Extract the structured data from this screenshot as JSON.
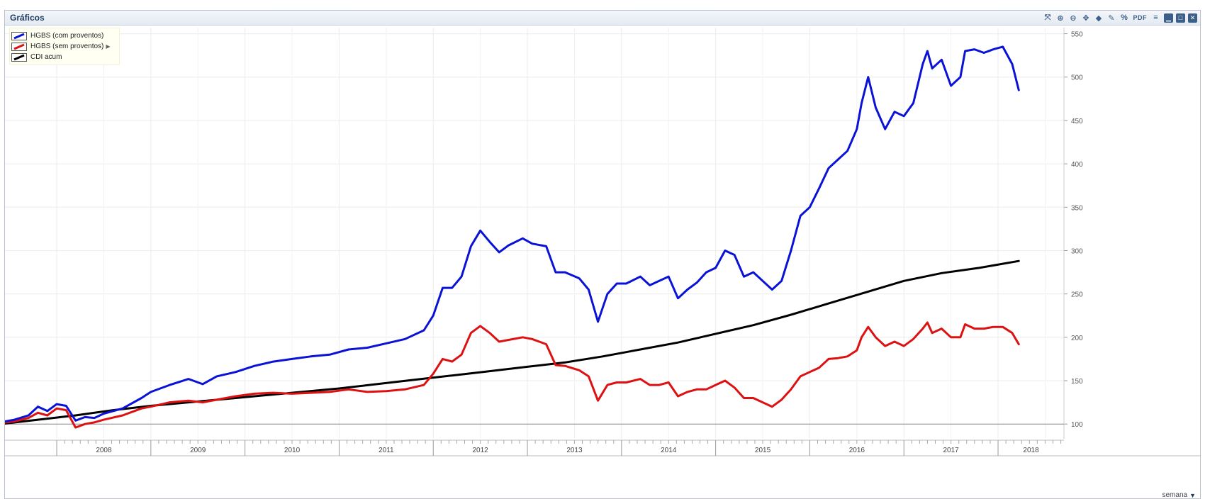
{
  "panel": {
    "title": "Gráficos"
  },
  "toolbar": [
    {
      "name": "fullscreen-icon",
      "glyph": "⤧"
    },
    {
      "name": "zoom-in-icon",
      "glyph": "⊕"
    },
    {
      "name": "zoom-out-icon",
      "glyph": "⊖"
    },
    {
      "name": "pan-icon",
      "glyph": "✥"
    },
    {
      "name": "tag-icon",
      "glyph": "◆"
    },
    {
      "name": "draw-icon",
      "glyph": "✎"
    },
    {
      "name": "percent-icon",
      "glyph": "%"
    },
    {
      "name": "pdf-icon",
      "glyph": "PDF"
    },
    {
      "name": "menu-icon",
      "glyph": "≡"
    },
    {
      "name": "minimize-icon",
      "glyph": "▁"
    },
    {
      "name": "maximize-icon",
      "glyph": "□"
    },
    {
      "name": "close-icon",
      "glyph": "✕"
    }
  ],
  "legend": [
    {
      "label": "HGBS (com proventos)",
      "color": "#0a12d6",
      "arrow": ""
    },
    {
      "label": "HGBS (sem proventos)",
      "color": "#dd1111",
      "arrow": "▶"
    },
    {
      "label": "CDI acum",
      "color": "#000000",
      "arrow": ""
    }
  ],
  "period": {
    "label": "semana",
    "caret": "▼"
  },
  "chart_data": {
    "type": "line",
    "title": "",
    "xlabel": "",
    "ylabel": "",
    "xlim": [
      2007.45,
      2018.7
    ],
    "ylim": [
      83,
      557
    ],
    "yticks": [
      100,
      150,
      200,
      250,
      300,
      350,
      400,
      450,
      500,
      550
    ],
    "year_labels": [
      "2008",
      "2009",
      "2010",
      "2011",
      "2012",
      "2013",
      "2014",
      "2015",
      "2016",
      "2017",
      "2018"
    ],
    "baseline": 100,
    "grid": true,
    "legend_position": "top-left",
    "series": [
      {
        "name": "HGBS (com proventos)",
        "color": "#0a12d6",
        "points": [
          [
            2007.4,
            102
          ],
          [
            2007.55,
            105
          ],
          [
            2007.7,
            110
          ],
          [
            2007.8,
            120
          ],
          [
            2007.9,
            115
          ],
          [
            2008.0,
            123
          ],
          [
            2008.1,
            121
          ],
          [
            2008.2,
            104
          ],
          [
            2008.3,
            108
          ],
          [
            2008.4,
            107
          ],
          [
            2008.5,
            112
          ],
          [
            2008.7,
            118
          ],
          [
            2008.9,
            130
          ],
          [
            2009.0,
            137
          ],
          [
            2009.2,
            145
          ],
          [
            2009.4,
            152
          ],
          [
            2009.55,
            146
          ],
          [
            2009.7,
            155
          ],
          [
            2009.9,
            160
          ],
          [
            2010.1,
            167
          ],
          [
            2010.3,
            172
          ],
          [
            2010.5,
            175
          ],
          [
            2010.7,
            178
          ],
          [
            2010.9,
            180
          ],
          [
            2011.1,
            186
          ],
          [
            2011.3,
            188
          ],
          [
            2011.5,
            193
          ],
          [
            2011.7,
            198
          ],
          [
            2011.9,
            208
          ],
          [
            2012.0,
            225
          ],
          [
            2012.1,
            257
          ],
          [
            2012.2,
            257
          ],
          [
            2012.3,
            270
          ],
          [
            2012.4,
            305
          ],
          [
            2012.5,
            323
          ],
          [
            2012.6,
            310
          ],
          [
            2012.7,
            298
          ],
          [
            2012.8,
            306
          ],
          [
            2012.95,
            314
          ],
          [
            2013.05,
            308
          ],
          [
            2013.2,
            305
          ],
          [
            2013.3,
            275
          ],
          [
            2013.4,
            275
          ],
          [
            2013.55,
            268
          ],
          [
            2013.65,
            255
          ],
          [
            2013.75,
            218
          ],
          [
            2013.85,
            250
          ],
          [
            2013.95,
            262
          ],
          [
            2014.05,
            262
          ],
          [
            2014.2,
            270
          ],
          [
            2014.3,
            260
          ],
          [
            2014.4,
            265
          ],
          [
            2014.5,
            270
          ],
          [
            2014.6,
            245
          ],
          [
            2014.7,
            255
          ],
          [
            2014.8,
            263
          ],
          [
            2014.9,
            275
          ],
          [
            2015.0,
            280
          ],
          [
            2015.1,
            300
          ],
          [
            2015.2,
            295
          ],
          [
            2015.3,
            270
          ],
          [
            2015.4,
            275
          ],
          [
            2015.5,
            265
          ],
          [
            2015.6,
            255
          ],
          [
            2015.7,
            265
          ],
          [
            2015.8,
            300
          ],
          [
            2015.9,
            340
          ],
          [
            2016.0,
            350
          ],
          [
            2016.1,
            372
          ],
          [
            2016.2,
            395
          ],
          [
            2016.3,
            405
          ],
          [
            2016.4,
            415
          ],
          [
            2016.5,
            440
          ],
          [
            2016.55,
            470
          ],
          [
            2016.62,
            500
          ],
          [
            2016.7,
            465
          ],
          [
            2016.8,
            440
          ],
          [
            2016.9,
            460
          ],
          [
            2017.0,
            455
          ],
          [
            2017.1,
            470
          ],
          [
            2017.2,
            515
          ],
          [
            2017.25,
            530
          ],
          [
            2017.3,
            510
          ],
          [
            2017.4,
            520
          ],
          [
            2017.5,
            490
          ],
          [
            2017.6,
            500
          ],
          [
            2017.65,
            530
          ],
          [
            2017.75,
            532
          ],
          [
            2017.85,
            528
          ],
          [
            2017.95,
            532
          ],
          [
            2018.05,
            535
          ],
          [
            2018.15,
            515
          ],
          [
            2018.22,
            485
          ]
        ]
      },
      {
        "name": "HGBS (sem proventos)",
        "color": "#dd1111",
        "points": [
          [
            2007.4,
            101
          ],
          [
            2007.55,
            103
          ],
          [
            2007.7,
            107
          ],
          [
            2007.8,
            113
          ],
          [
            2007.9,
            110
          ],
          [
            2008.0,
            118
          ],
          [
            2008.1,
            116
          ],
          [
            2008.2,
            96
          ],
          [
            2008.3,
            100
          ],
          [
            2008.4,
            102
          ],
          [
            2008.5,
            105
          ],
          [
            2008.7,
            110
          ],
          [
            2008.9,
            118
          ],
          [
            2009.0,
            120
          ],
          [
            2009.2,
            125
          ],
          [
            2009.4,
            127
          ],
          [
            2009.55,
            125
          ],
          [
            2009.7,
            128
          ],
          [
            2009.9,
            132
          ],
          [
            2010.1,
            135
          ],
          [
            2010.3,
            136
          ],
          [
            2010.5,
            135
          ],
          [
            2010.7,
            136
          ],
          [
            2010.9,
            137
          ],
          [
            2011.1,
            140
          ],
          [
            2011.3,
            137
          ],
          [
            2011.5,
            138
          ],
          [
            2011.7,
            140
          ],
          [
            2011.9,
            145
          ],
          [
            2012.0,
            158
          ],
          [
            2012.1,
            175
          ],
          [
            2012.2,
            172
          ],
          [
            2012.3,
            180
          ],
          [
            2012.4,
            205
          ],
          [
            2012.5,
            213
          ],
          [
            2012.6,
            205
          ],
          [
            2012.7,
            195
          ],
          [
            2012.8,
            197
          ],
          [
            2012.95,
            200
          ],
          [
            2013.05,
            198
          ],
          [
            2013.2,
            192
          ],
          [
            2013.3,
            168
          ],
          [
            2013.4,
            167
          ],
          [
            2013.55,
            162
          ],
          [
            2013.65,
            155
          ],
          [
            2013.75,
            127
          ],
          [
            2013.85,
            145
          ],
          [
            2013.95,
            148
          ],
          [
            2014.05,
            148
          ],
          [
            2014.2,
            152
          ],
          [
            2014.3,
            145
          ],
          [
            2014.4,
            145
          ],
          [
            2014.5,
            148
          ],
          [
            2014.6,
            132
          ],
          [
            2014.7,
            137
          ],
          [
            2014.8,
            140
          ],
          [
            2014.9,
            140
          ],
          [
            2015.0,
            145
          ],
          [
            2015.1,
            150
          ],
          [
            2015.2,
            142
          ],
          [
            2015.3,
            130
          ],
          [
            2015.4,
            130
          ],
          [
            2015.5,
            125
          ],
          [
            2015.6,
            120
          ],
          [
            2015.7,
            128
          ],
          [
            2015.8,
            140
          ],
          [
            2015.9,
            155
          ],
          [
            2016.0,
            160
          ],
          [
            2016.1,
            165
          ],
          [
            2016.2,
            175
          ],
          [
            2016.3,
            176
          ],
          [
            2016.4,
            178
          ],
          [
            2016.5,
            185
          ],
          [
            2016.55,
            200
          ],
          [
            2016.62,
            212
          ],
          [
            2016.7,
            200
          ],
          [
            2016.8,
            190
          ],
          [
            2016.9,
            195
          ],
          [
            2017.0,
            190
          ],
          [
            2017.1,
            198
          ],
          [
            2017.2,
            210
          ],
          [
            2017.25,
            217
          ],
          [
            2017.3,
            205
          ],
          [
            2017.4,
            210
          ],
          [
            2017.5,
            200
          ],
          [
            2017.6,
            200
          ],
          [
            2017.65,
            215
          ],
          [
            2017.75,
            210
          ],
          [
            2017.85,
            210
          ],
          [
            2017.95,
            212
          ],
          [
            2018.05,
            212
          ],
          [
            2018.15,
            205
          ],
          [
            2018.22,
            192
          ]
        ]
      },
      {
        "name": "CDI acum",
        "color": "#000000",
        "points": [
          [
            2007.4,
            100
          ],
          [
            2007.8,
            105
          ],
          [
            2008.2,
            110
          ],
          [
            2008.6,
            116
          ],
          [
            2009.0,
            121
          ],
          [
            2009.4,
            125
          ],
          [
            2009.8,
            129
          ],
          [
            2010.2,
            133
          ],
          [
            2010.6,
            137
          ],
          [
            2011.0,
            141
          ],
          [
            2011.4,
            146
          ],
          [
            2011.8,
            151
          ],
          [
            2012.2,
            156
          ],
          [
            2012.6,
            161
          ],
          [
            2013.0,
            166
          ],
          [
            2013.4,
            171
          ],
          [
            2013.8,
            178
          ],
          [
            2014.2,
            186
          ],
          [
            2014.6,
            194
          ],
          [
            2015.0,
            204
          ],
          [
            2015.4,
            214
          ],
          [
            2015.8,
            226
          ],
          [
            2016.2,
            239
          ],
          [
            2016.6,
            252
          ],
          [
            2017.0,
            265
          ],
          [
            2017.4,
            274
          ],
          [
            2017.8,
            280
          ],
          [
            2018.22,
            288
          ]
        ]
      }
    ]
  }
}
